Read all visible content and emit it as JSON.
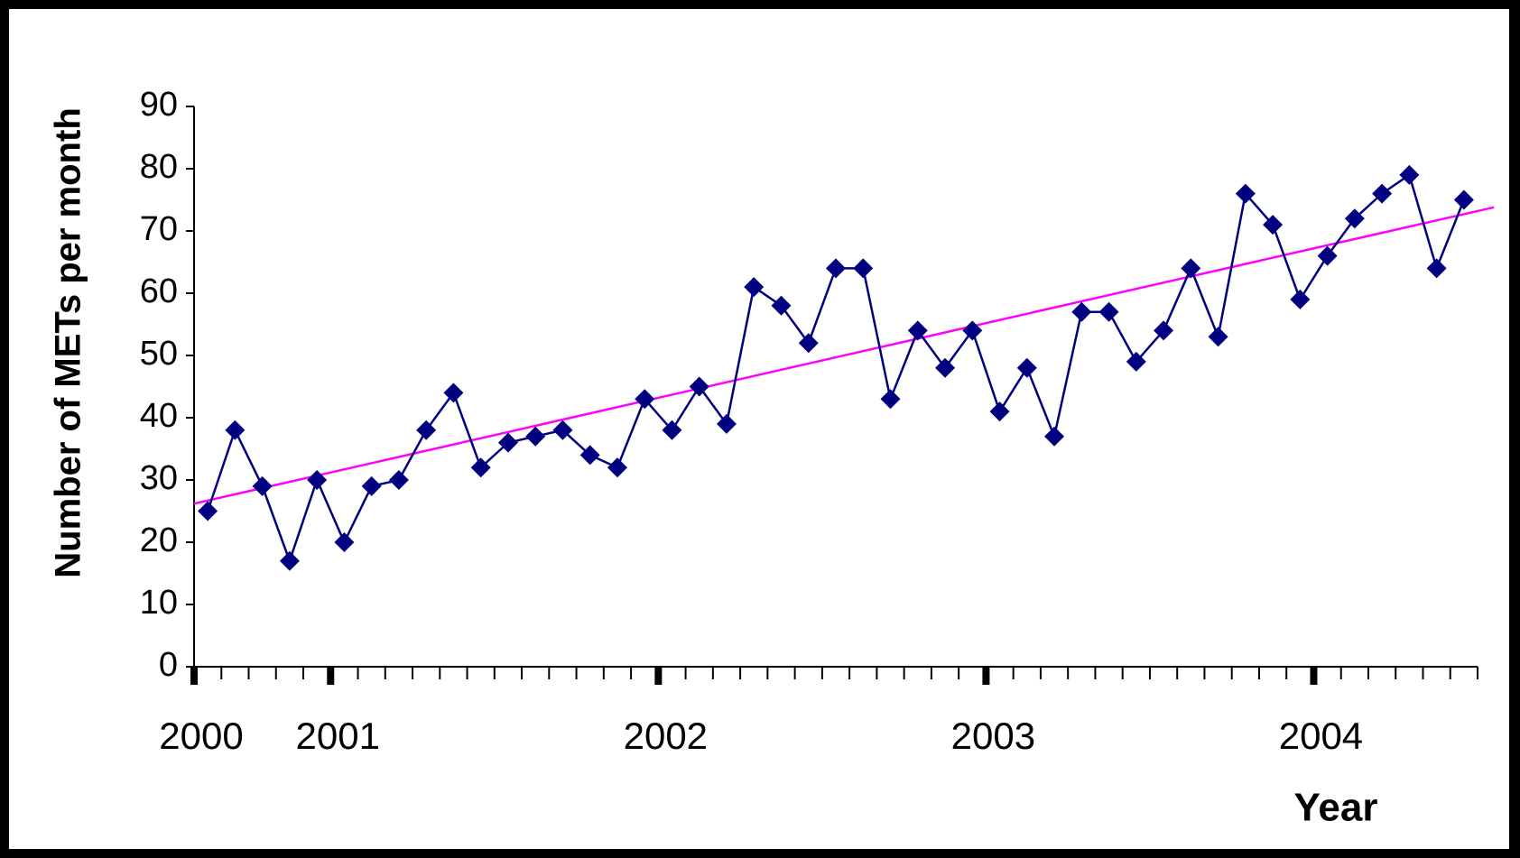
{
  "chart_data": {
    "type": "line",
    "y_label": "Number of METs per month",
    "x_label": "Year",
    "categories": [
      null,
      null,
      null,
      null,
      null,
      null,
      null,
      null,
      null,
      null,
      null,
      null,
      null,
      null,
      null,
      null,
      null,
      null,
      null,
      null,
      null,
      null,
      null,
      null,
      null,
      null,
      null,
      null,
      null,
      null,
      null,
      null,
      null,
      null,
      null,
      null,
      null,
      null,
      null,
      null,
      null,
      null,
      null,
      null,
      null,
      null,
      null
    ],
    "series": [
      {
        "name": "METs",
        "color": "#000080",
        "values": [
          25,
          38,
          29,
          17,
          30,
          20,
          29,
          30,
          38,
          44,
          32,
          36,
          37,
          38,
          34,
          32,
          43,
          38,
          45,
          39,
          61,
          58,
          52,
          64,
          64,
          43,
          54,
          48,
          54,
          41,
          48,
          37,
          57,
          57,
          49,
          54,
          64,
          53,
          76,
          71,
          59,
          66,
          72,
          76,
          79,
          64,
          75
        ]
      }
    ],
    "trendline": {
      "color": "#ff00ff",
      "x": [
        0,
        47.6
      ],
      "values": [
        26.2,
        73.8
      ]
    },
    "xlim": [
      0,
      47
    ],
    "xticks": [
      {
        "value": 0,
        "label": "2000"
      },
      {
        "value": 5,
        "label": "2001"
      },
      {
        "value": 17,
        "label": "2002"
      },
      {
        "value": 29,
        "label": "2003"
      },
      {
        "value": 41,
        "label": "2004"
      }
    ],
    "ylim": [
      0,
      90
    ],
    "yticks": [
      0,
      10,
      20,
      30,
      40,
      50,
      60,
      70,
      80,
      90
    ]
  }
}
